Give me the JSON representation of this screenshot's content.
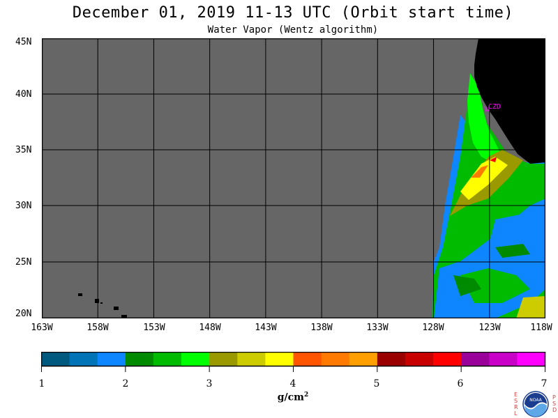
{
  "header": {
    "title": "December 01, 2019  11-13 UTC  (Orbit start time)",
    "subtitle": "Water Vapor (Wentz algorithm)"
  },
  "map": {
    "lat_labels": [
      "45N",
      "40N",
      "35N",
      "30N",
      "25N",
      "20N"
    ],
    "lon_labels": [
      "163W",
      "158W",
      "153W",
      "148W",
      "143W",
      "138W",
      "133W",
      "128W",
      "123W",
      "118W"
    ],
    "lon_range": [
      -163,
      -118
    ],
    "lat_range": [
      20,
      45
    ],
    "station_label": "CZD",
    "colors": {
      "no_data": "#666666",
      "land": "#000000",
      "station": "#ff00ff"
    }
  },
  "colorbar": {
    "labels": [
      "1",
      "2",
      "3",
      "4",
      "5",
      "6",
      "7"
    ],
    "units_text": "g/cm",
    "units_exp": "2",
    "colors": [
      "#005a7f",
      "#0074b7",
      "#0e86ff",
      "#008a00",
      "#00bb00",
      "#00ff00",
      "#9a9a00",
      "#cccc00",
      "#ffff00",
      "#ff5500",
      "#ff7a00",
      "#ffa000",
      "#9a0000",
      "#c80000",
      "#ff0000",
      "#9a009a",
      "#c800c8",
      "#ff00ff"
    ]
  },
  "logo": {
    "esrl": "ESRL",
    "psd": "PSD",
    "noaa": "NOAA"
  }
}
